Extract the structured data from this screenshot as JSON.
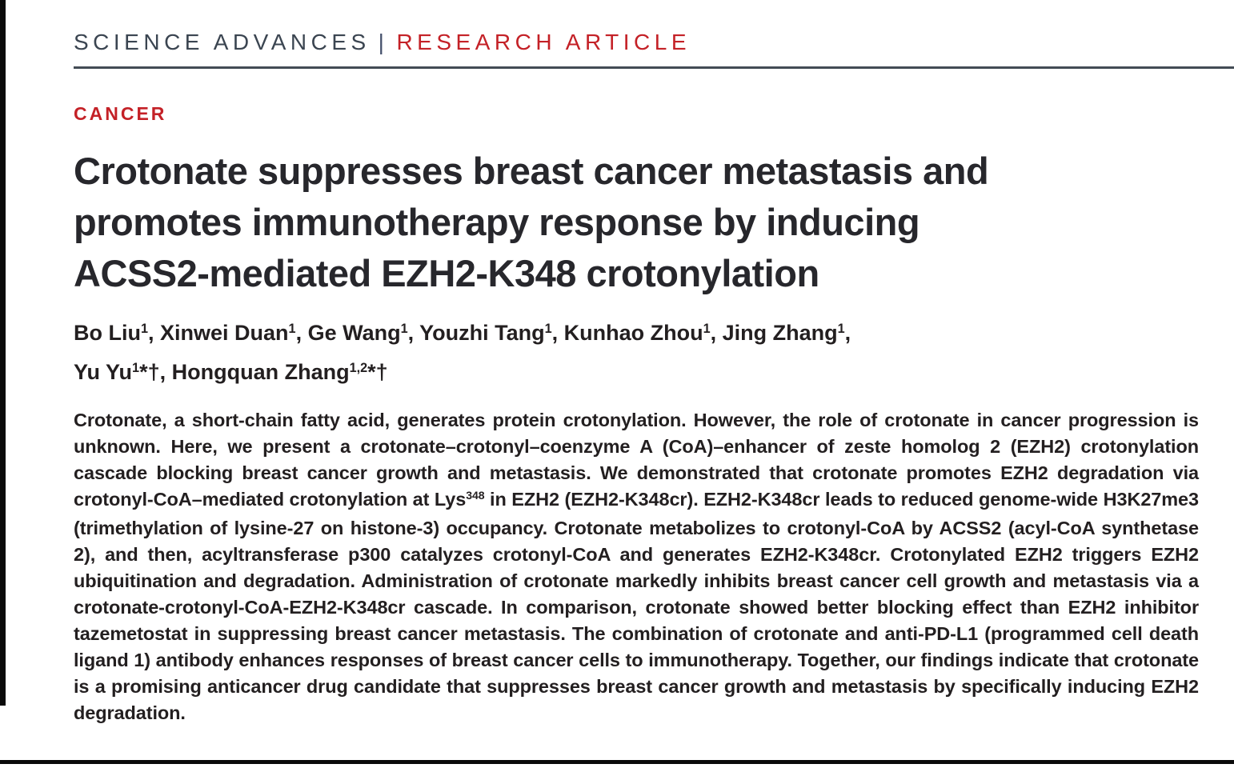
{
  "masthead": {
    "journal": "SCIENCE ADVANCES",
    "divider": "|",
    "article_type": "RESEARCH ARTICLE"
  },
  "article": {
    "section": "CANCER",
    "title_lines": [
      "Crotonate suppresses breast cancer metastasis and",
      "promotes immunotherapy response by inducing",
      "ACSS2-mediated EZH2-K348 crotonylation"
    ],
    "authors": [
      {
        "name": "Bo Liu",
        "sup": "1",
        "marks": "",
        "tail": ", "
      },
      {
        "name": "Xinwei Duan",
        "sup": "1",
        "marks": "",
        "tail": ", "
      },
      {
        "name": "Ge Wang",
        "sup": "1",
        "marks": "",
        "tail": ", "
      },
      {
        "name": "Youzhi Tang",
        "sup": "1",
        "marks": "",
        "tail": ", "
      },
      {
        "name": "Kunhao Zhou",
        "sup": "1",
        "marks": "",
        "tail": ", "
      },
      {
        "name": "Jing Zhang",
        "sup": "1",
        "marks": "",
        "tail": ","
      },
      {
        "name": "Yu Yu",
        "sup": "1",
        "marks": "*†",
        "tail": ", "
      },
      {
        "name": "Hongquan Zhang",
        "sup": "1,2",
        "marks": "*†",
        "tail": ""
      }
    ],
    "abstract": {
      "part1": "Crotonate, a short-chain fatty acid, generates protein crotonylation. However, the role of crotonate in cancer progression is unknown. Here, we present a crotonate–crotonyl–coenzyme A (CoA)–enhancer of zeste homolog 2 (EZH2) crotonylation cascade blocking breast cancer growth and metastasis. We demonstrated that crotonate promotes EZH2 degradation via crotonyl-CoA–mediated crotonylation at Lys",
      "sup": "348",
      "part2": " in EZH2 (EZH2-K348cr). EZH2-K348cr leads to reduced genome-wide H3K27me3 (trimethylation of lysine-27 on histone-3) occupancy. Crotonate metabolizes to crotonyl-CoA by ACSS2 (acyl-CoA synthetase 2), and then, acyltransferase p300 catalyzes crotonyl-CoA and generates EZH2-K348cr. Crotonylated EZH2 triggers EZH2 ubiquitination and degradation. Administration of crotonate markedly inhibits breast cancer cell growth and metastasis via a crotonate-crotonyl-CoA-EZH2-K348cr cascade. In comparison, crotonate showed better blocking effect than EZH2 inhibitor tazemetostat in suppressing breast cancer metastasis. The combination of crotonate and anti-PD-L1 (programmed cell death ligand 1) antibody enhances responses of breast cancer cells to immunotherapy. Together, our findings indicate that crotonate is a promising anticancer drug candidate that suppresses breast cancer growth and metastasis by specifically inducing EZH2 degradation."
    }
  },
  "colors": {
    "accent_red": "#c42127",
    "masthead_dark": "#3b4551",
    "text_dark": "#231f20"
  }
}
